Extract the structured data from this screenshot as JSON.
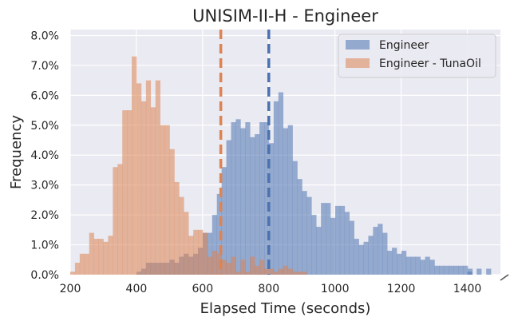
{
  "chart_data": {
    "type": "bar",
    "subtype": "overlapping-histogram",
    "title": "UNISIM-II-H - Engineer",
    "xlabel": "Elapsed Time (seconds)",
    "ylabel": "Frequency",
    "xlim": [
      200,
      1500
    ],
    "ylim": [
      0,
      8.2
    ],
    "xticks": [
      200,
      400,
      600,
      800,
      1000,
      1200,
      1400
    ],
    "xtick_labels": [
      "200",
      "400",
      "600",
      "800",
      "1000",
      "1200",
      "1400"
    ],
    "yticks": [
      0,
      1,
      2,
      3,
      4,
      5,
      6,
      7,
      8
    ],
    "ytick_labels": [
      "0.0%",
      "1.0%",
      "2.0%",
      "3.0%",
      "4.0%",
      "5.0%",
      "6.0%",
      "7.0%",
      "8.0%"
    ],
    "grid": true,
    "legend_position": "top-right",
    "bin_width": 14.3,
    "series": [
      {
        "name": "Engineer",
        "color": "#4c72b0",
        "mean_line": 800,
        "bin_start": 400,
        "values": [
          0.1,
          0.2,
          0.4,
          0.4,
          0.4,
          0.4,
          0.4,
          0.5,
          0.4,
          0.6,
          0.7,
          0.6,
          0.7,
          0.9,
          1.4,
          1.4,
          2.0,
          2.7,
          3.6,
          4.5,
          5.1,
          5.2,
          4.9,
          5.1,
          4.6,
          4.7,
          5.1,
          5.1,
          4.4,
          5.8,
          6.1,
          4.9,
          5.0,
          3.8,
          3.2,
          2.8,
          2.6,
          2.0,
          1.6,
          2.4,
          2.4,
          1.9,
          2.3,
          2.3,
          2.1,
          1.8,
          1.2,
          1.0,
          1.1,
          1.3,
          1.6,
          1.7,
          1.4,
          0.8,
          0.9,
          0.7,
          0.8,
          0.6,
          0.6,
          0.6,
          0.5,
          0.6,
          0.5,
          0.3,
          0.3,
          0.3,
          0.3,
          0.3,
          0.3,
          0.3,
          0.2
        ],
        "tail": [
          {
            "x": 1400,
            "value": 0.1
          },
          {
            "x": 1428,
            "value": 0.2
          },
          {
            "x": 1457,
            "value": 0.2
          }
        ]
      },
      {
        "name": "Engineer - TunaOil",
        "color": "#dd8452",
        "mean_line": 655,
        "bin_start": 200,
        "values": [
          0.1,
          0.4,
          0.7,
          0.7,
          1.4,
          1.2,
          1.2,
          1.1,
          1.3,
          3.6,
          3.7,
          5.5,
          5.5,
          7.3,
          6.4,
          5.8,
          6.5,
          5.6,
          6.5,
          5.0,
          5.0,
          4.2,
          3.1,
          2.6,
          2.1,
          1.3,
          1.5,
          1.5,
          1.4,
          0.6,
          0.8,
          0.7,
          0.5,
          0.4,
          0.6,
          0.1,
          0.5,
          0.1,
          0.6,
          0.3,
          0.5,
          0.2,
          0.2,
          0.1,
          0.2,
          0.3,
          0.2,
          0.1,
          0.1,
          0.1
        ]
      }
    ]
  }
}
